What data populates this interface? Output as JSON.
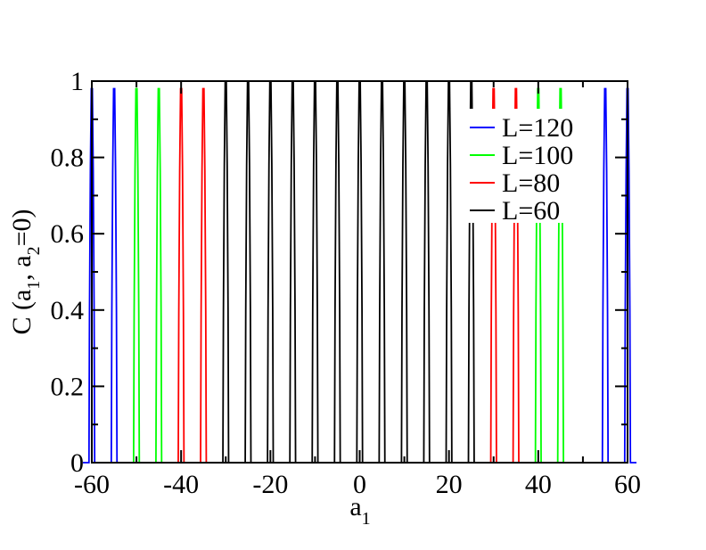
{
  "chart_data": {
    "type": "line",
    "xlabel": "a",
    "xlabel_sub": "1",
    "ylabel_parts": [
      "C (a",
      "1",
      ", a",
      "2",
      "=0)"
    ],
    "xlim": [
      -60,
      60
    ],
    "ylim": [
      0,
      1
    ],
    "x_ticks": [
      -60,
      -40,
      -20,
      0,
      20,
      40,
      60
    ],
    "y_ticks": [
      0,
      0.2,
      0.4,
      0.6,
      0.8,
      1
    ],
    "x_tick_labels": [
      "-60",
      "-40",
      "-20",
      "0",
      "20",
      "40",
      "60"
    ],
    "y_tick_labels": [
      "0",
      "0.2",
      "0.4",
      "0.6",
      "0.8",
      "1"
    ],
    "grid": false,
    "legend_position": "top-right",
    "series": [
      {
        "name": "L=120",
        "color": "#0000ff",
        "peaks": [
          {
            "x": -60,
            "y": 0.98
          },
          {
            "x": -55,
            "y": 0.98
          },
          {
            "x": 55,
            "y": 0.98
          },
          {
            "x": 60,
            "y": 0.98
          }
        ]
      },
      {
        "name": "L=100",
        "color": "#00ff00",
        "peaks": [
          {
            "x": -50,
            "y": 0.98
          },
          {
            "x": -45,
            "y": 0.98
          },
          {
            "x": 40,
            "y": 0.98
          },
          {
            "x": 45,
            "y": 0.98
          }
        ]
      },
      {
        "name": "L=80",
        "color": "#ff0000",
        "peaks": [
          {
            "x": -40,
            "y": 0.98
          },
          {
            "x": -35,
            "y": 0.98
          },
          {
            "x": 30,
            "y": 0.98
          },
          {
            "x": 35,
            "y": 0.98
          }
        ]
      },
      {
        "name": "L=60",
        "color": "#000000",
        "peaks": [
          {
            "x": -30,
            "y": 1.0
          },
          {
            "x": -25,
            "y": 1.0
          },
          {
            "x": -20,
            "y": 1.0
          },
          {
            "x": -15,
            "y": 1.0
          },
          {
            "x": -10,
            "y": 1.0
          },
          {
            "x": -5,
            "y": 1.0
          },
          {
            "x": 0,
            "y": 1.0
          },
          {
            "x": 5,
            "y": 1.0
          },
          {
            "x": 10,
            "y": 1.0
          },
          {
            "x": 15,
            "y": 1.0
          },
          {
            "x": 20,
            "y": 1.0
          },
          {
            "x": 25,
            "y": 1.0
          }
        ]
      }
    ]
  }
}
